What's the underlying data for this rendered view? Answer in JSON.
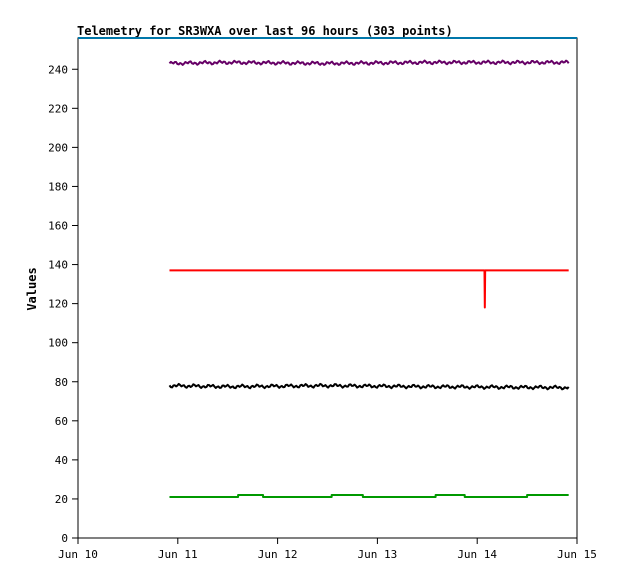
{
  "chart_data": {
    "type": "line",
    "title": "Telemetry for SR3WXA over last 96 hours (303 points)",
    "xlabel": "",
    "ylabel": "Values",
    "xlim": [
      "2025-06-10",
      "2025-06-15"
    ],
    "ylim": [
      0,
      256
    ],
    "xticks": [
      "Jun 10",
      "Jun 11",
      "Jun 12",
      "Jun 13",
      "Jun 14",
      "Jun 15"
    ],
    "yticks": [
      0,
      20,
      40,
      60,
      80,
      100,
      120,
      140,
      160,
      180,
      200,
      220,
      240
    ],
    "grid": false,
    "legend": "none",
    "x_start": "2025-06-10T22:00",
    "x_end": "2025-06-14T22:00",
    "series": [
      {
        "color": "#660066",
        "style": "noisy",
        "points": [
          [
            "2025-06-10T22:00",
            243
          ],
          [
            "2025-06-11T12:00",
            243.5
          ],
          [
            "2025-06-12T12:00",
            243
          ],
          [
            "2025-06-13T12:00",
            243.5
          ],
          [
            "2025-06-14T22:00",
            243.5
          ]
        ]
      },
      {
        "color": "#ff0000",
        "style": "flat",
        "points": [
          [
            "2025-06-10T22:00",
            137
          ],
          [
            "2025-06-14T01:45",
            137
          ],
          [
            "2025-06-14T01:50",
            118
          ],
          [
            "2025-06-14T01:55",
            137
          ],
          [
            "2025-06-14T22:00",
            137
          ]
        ]
      },
      {
        "color": "#000000",
        "style": "noisy",
        "points": [
          [
            "2025-06-10T22:00",
            78
          ],
          [
            "2025-06-11T12:00",
            77.5
          ],
          [
            "2025-06-12T12:00",
            78
          ],
          [
            "2025-06-13T12:00",
            77.5
          ],
          [
            "2025-06-14T22:00",
            77
          ]
        ]
      },
      {
        "color": "#009900",
        "style": "step",
        "points": [
          [
            "2025-06-10T22:00",
            21
          ],
          [
            "2025-06-11T14:30",
            21
          ],
          [
            "2025-06-11T14:30",
            22
          ],
          [
            "2025-06-11T20:30",
            22
          ],
          [
            "2025-06-11T20:30",
            21
          ],
          [
            "2025-06-12T13:00",
            21
          ],
          [
            "2025-06-12T13:00",
            22
          ],
          [
            "2025-06-12T20:30",
            22
          ],
          [
            "2025-06-12T20:30",
            21
          ],
          [
            "2025-06-13T14:00",
            21
          ],
          [
            "2025-06-13T14:00",
            22
          ],
          [
            "2025-06-13T21:00",
            22
          ],
          [
            "2025-06-13T21:00",
            21
          ],
          [
            "2025-06-14T12:00",
            21
          ],
          [
            "2025-06-14T12:00",
            22
          ],
          [
            "2025-06-14T22:00",
            22
          ]
        ]
      },
      {
        "color": "#0077aa",
        "style": "flat",
        "points": [
          [
            "2025-06-10T00:00",
            256
          ],
          [
            "2025-06-15T00:00",
            256
          ]
        ]
      }
    ]
  }
}
